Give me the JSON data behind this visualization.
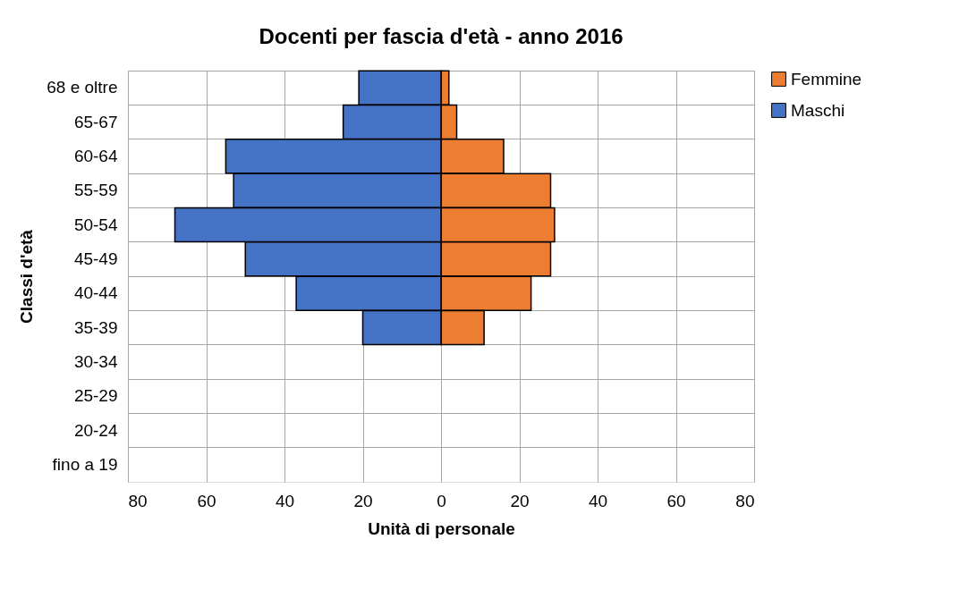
{
  "chart_data": {
    "type": "bar",
    "orientation": "horizontal",
    "title": "Docenti per fascia d'età - anno 2016",
    "xlabel": "Unità di personale",
    "ylabel": "Classi d'età",
    "categories": [
      "68 e oltre",
      "65-67",
      "60-64",
      "55-59",
      "50-54",
      "45-49",
      "40-44",
      "35-39",
      "30-34",
      "25-29",
      "20-24",
      "fino a 19"
    ],
    "series": [
      {
        "name": "Femmine",
        "color": "#ed7d31",
        "values": [
          2,
          4,
          16,
          28,
          29,
          28,
          23,
          11,
          null,
          null,
          null,
          null
        ]
      },
      {
        "name": "Maschi",
        "color": "#4472c4",
        "values": [
          -21,
          -25,
          -55,
          -53,
          -68,
          -50,
          -37,
          -20,
          null,
          null,
          null,
          null
        ]
      }
    ],
    "xlim": [
      -80,
      80
    ],
    "xticks": [
      {
        "value": -80,
        "label": "80"
      },
      {
        "value": -60,
        "label": "60"
      },
      {
        "value": -40,
        "label": "40"
      },
      {
        "value": -20,
        "label": "20"
      },
      0,
      20,
      40,
      60,
      80
    ],
    "stacked": true,
    "grid": true,
    "legend": "right"
  }
}
